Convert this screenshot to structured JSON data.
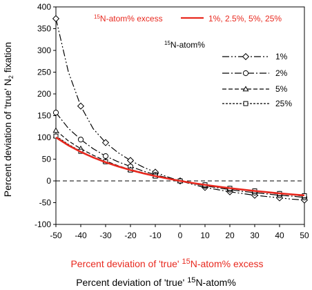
{
  "chart_data": {
    "type": "line",
    "ylabel_main": "Percent deviation of 'true' N",
    "ylabel_sub": "2",
    "ylabel_tail": " fixation",
    "xlabel_black_prefix": "Percent deviation of 'true' ",
    "xlabel_black_sup": "15",
    "xlabel_black_tail": "N-atom%",
    "xlabel_red_prefix": "Percent deviation of 'true' ",
    "xlabel_red_sup": "15",
    "xlabel_red_tail": "N-atom% excess",
    "xlim": [
      -50,
      50
    ],
    "ylim": [
      -100,
      400
    ],
    "xticks": [
      -50,
      -40,
      -30,
      -20,
      -10,
      0,
      10,
      20,
      30,
      40,
      50
    ],
    "yticks": [
      -100,
      -50,
      0,
      50,
      100,
      150,
      200,
      250,
      300,
      350,
      400
    ],
    "legend_red_sup": "15",
    "legend_red_label": "N-atom% excess",
    "legend_red_series": "1%, 2.5%, 5%, 25%",
    "legend_black_sup": "15",
    "legend_black_title": "N-atom%",
    "red_series": {
      "name": "1%, 2.5%, 5%, 25%",
      "color": "#e8281e",
      "x": [
        -50,
        -45,
        -40,
        -35,
        -30,
        -25,
        -20,
        -15,
        -10,
        -5,
        0,
        5,
        10,
        15,
        20,
        25,
        30,
        35,
        40,
        45,
        50
      ],
      "values": [
        100,
        81.8,
        66.7,
        53.8,
        42.9,
        33.3,
        25.0,
        17.6,
        11.1,
        5.3,
        0,
        -4.8,
        -9.1,
        -13.0,
        -16.7,
        -20.0,
        -23.1,
        -25.9,
        -28.6,
        -31.0,
        -33.3
      ]
    },
    "series": [
      {
        "name": "1%",
        "marker": "diamond",
        "dash": "10 3 2 3 2 3",
        "x": [
          -50,
          -45,
          -40,
          -35,
          -30,
          -25,
          -20,
          -15,
          -10,
          -5,
          0,
          5,
          10,
          15,
          20,
          25,
          30,
          35,
          40,
          45,
          50
        ],
        "values": [
          373,
          251,
          172,
          120,
          88,
          65,
          47,
          32,
          20,
          9,
          0,
          -8,
          -15,
          -20,
          -25,
          -29,
          -33,
          -36,
          -39,
          -42,
          -44
        ],
        "marker_x": [
          -50,
          -40,
          -30,
          -20,
          -10,
          0,
          10,
          20,
          30,
          40,
          50
        ]
      },
      {
        "name": "2%",
        "marker": "circle",
        "dash": "10 3 2 3",
        "x": [
          -50,
          -45,
          -40,
          -35,
          -30,
          -25,
          -20,
          -15,
          -10,
          -5,
          0,
          5,
          10,
          15,
          20,
          25,
          30,
          35,
          40,
          45,
          50
        ],
        "values": [
          157,
          121,
          95,
          74,
          57,
          44,
          33,
          23,
          14,
          7,
          0,
          -6,
          -11,
          -16,
          -20,
          -24,
          -27,
          -30,
          -33,
          -35,
          -38
        ],
        "marker_x": [
          -50,
          -40,
          -30,
          -20,
          -10,
          0,
          10,
          20,
          30,
          40,
          50
        ]
      },
      {
        "name": "5%",
        "marker": "triangle",
        "dash": "6 3",
        "x": [
          -50,
          -45,
          -40,
          -35,
          -30,
          -25,
          -20,
          -15,
          -10,
          -5,
          0,
          5,
          10,
          15,
          20,
          25,
          30,
          35,
          40,
          45,
          50
        ],
        "values": [
          116,
          92,
          74,
          59,
          46,
          35,
          26,
          19,
          12,
          5,
          0,
          -5,
          -10,
          -14,
          -18,
          -21,
          -24,
          -27,
          -30,
          -32,
          -35
        ],
        "marker_x": [
          -50,
          -40,
          -30,
          -20,
          -10,
          0,
          10,
          20,
          30,
          40,
          50
        ]
      },
      {
        "name": "25%",
        "marker": "square",
        "dash": "3 2",
        "x": [
          -50,
          -45,
          -40,
          -35,
          -30,
          -25,
          -20,
          -15,
          -10,
          -5,
          0,
          5,
          10,
          15,
          20,
          25,
          30,
          35,
          40,
          45,
          50
        ],
        "values": [
          103,
          84,
          68,
          55,
          44,
          34,
          25,
          18,
          11,
          5,
          0,
          -5,
          -9,
          -13,
          -17,
          -20,
          -23,
          -26,
          -29,
          -31,
          -34
        ],
        "marker_x": [
          -50,
          -40,
          -30,
          -20,
          -10,
          0,
          10,
          20,
          30,
          40,
          50
        ]
      }
    ],
    "grid": false,
    "zero_line": true,
    "legend_position": "top-right"
  }
}
